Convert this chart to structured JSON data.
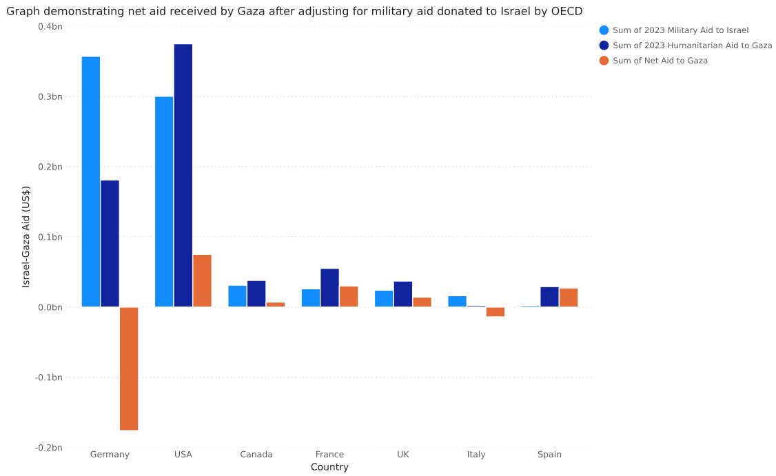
{
  "chart_data": {
    "type": "bar",
    "title": "Graph demonstrating net aid received by Gaza after adjusting for military aid donated to Israel by OECD",
    "xlabel": "Country",
    "ylabel": "Israel-Gaza Aid (US$)",
    "categories": [
      "Germany",
      "USA",
      "Canada",
      "France",
      "UK",
      "Italy",
      "Spain"
    ],
    "series": [
      {
        "name": "Sum of 2023 Military Aid to Israel",
        "color": "#118dff",
        "values": [
          0.357,
          0.3,
          0.031,
          0.026,
          0.024,
          0.016,
          0.002
        ]
      },
      {
        "name": "Sum of 2023 Humanitarian Aid to Gaza",
        "color": "#12239e",
        "values": [
          0.181,
          0.375,
          0.038,
          0.055,
          0.037,
          0.002,
          0.029
        ]
      },
      {
        "name": "Sum of Net Aid to Gaza",
        "color": "#e66c37",
        "values": [
          -0.176,
          0.075,
          0.007,
          0.03,
          0.014,
          -0.014,
          0.027
        ]
      }
    ],
    "ylim": [
      -0.2,
      0.4
    ],
    "yticks": [
      {
        "value": -0.2,
        "label": "-0.2bn"
      },
      {
        "value": -0.1,
        "label": "-0.1bn"
      },
      {
        "value": 0,
        "label": "0.0bn"
      },
      {
        "value": 0.1,
        "label": "0.1bn"
      },
      {
        "value": 0.2,
        "label": "0.2bn"
      },
      {
        "value": 0.3,
        "label": "0.3bn"
      },
      {
        "value": 0.4,
        "label": "0.4bn"
      }
    ],
    "grid": "y",
    "legend": "top right"
  }
}
